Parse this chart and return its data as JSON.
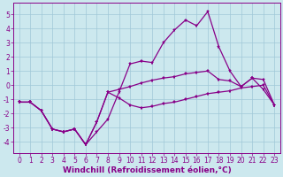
{
  "xlabel": "Windchill (Refroidissement éolien,°C)",
  "background_color": "#cce8ee",
  "grid_color": "#a0c8d8",
  "line_color": "#880088",
  "x": [
    0,
    1,
    2,
    3,
    4,
    5,
    6,
    7,
    8,
    9,
    10,
    11,
    12,
    13,
    14,
    15,
    16,
    17,
    18,
    19,
    20,
    21,
    22,
    23
  ],
  "line1": [
    -1.2,
    -1.2,
    -1.8,
    -3.1,
    -3.3,
    -3.1,
    -4.2,
    -3.3,
    -2.4,
    -0.5,
    1.5,
    1.7,
    1.6,
    3.0,
    3.9,
    4.6,
    4.2,
    5.2,
    2.7,
    1.0,
    -0.1,
    0.5,
    -0.3,
    -1.4
  ],
  "line2": [
    -1.2,
    -1.2,
    -1.8,
    -3.1,
    -3.3,
    -3.1,
    -4.2,
    -2.6,
    -0.5,
    -0.3,
    -0.1,
    0.15,
    0.35,
    0.5,
    0.6,
    0.8,
    0.9,
    1.0,
    0.4,
    0.3,
    -0.1,
    0.5,
    0.4,
    -1.4
  ],
  "line3": [
    -1.2,
    -1.2,
    -1.8,
    -3.1,
    -3.3,
    -3.1,
    -4.2,
    -2.6,
    -0.5,
    -0.9,
    -1.4,
    -1.6,
    -1.5,
    -1.3,
    -1.2,
    -1.0,
    -0.8,
    -0.6,
    -0.5,
    -0.4,
    -0.2,
    -0.1,
    0.0,
    -1.4
  ],
  "ylim": [
    -4.8,
    5.8
  ],
  "xlim": [
    -0.5,
    23.5
  ],
  "yticks": [
    -4,
    -3,
    -2,
    -1,
    0,
    1,
    2,
    3,
    4,
    5
  ],
  "xticks": [
    0,
    1,
    2,
    3,
    4,
    5,
    6,
    7,
    8,
    9,
    10,
    11,
    12,
    13,
    14,
    15,
    16,
    17,
    18,
    19,
    20,
    21,
    22,
    23
  ],
  "tick_fontsize": 5.5,
  "xlabel_fontsize": 6.5,
  "marker_size": 2.0,
  "line_width": 0.9
}
